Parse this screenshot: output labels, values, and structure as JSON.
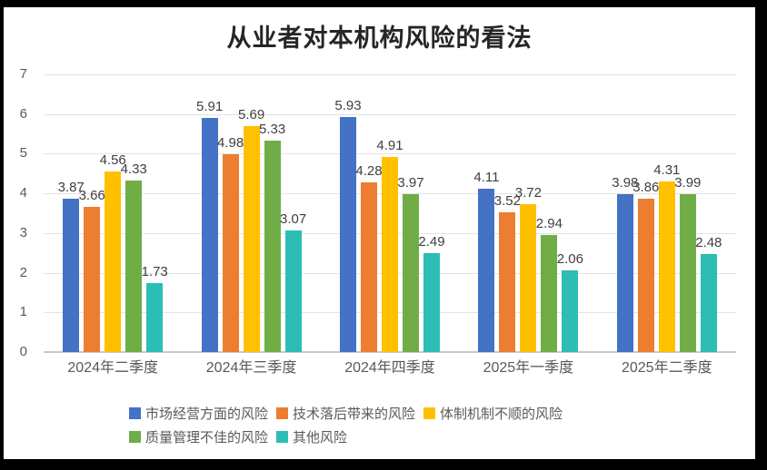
{
  "frame": {
    "background": "#000000",
    "page_background": "#ffffff"
  },
  "chart_data": {
    "type": "bar",
    "title": "从业者对本机构风险的看法",
    "categories": [
      "2024年二季度",
      "2024年三季度",
      "2024年四季度",
      "2025年一季度",
      "2025年二季度"
    ],
    "series": [
      {
        "name": "市场经营方面的风险",
        "color": "#4472C4",
        "values": [
          3.87,
          5.91,
          5.93,
          4.11,
          3.98
        ]
      },
      {
        "name": "技术落后带来的风险",
        "color": "#ED7D31",
        "values": [
          3.66,
          4.98,
          4.28,
          3.52,
          3.86
        ]
      },
      {
        "name": "体制机制不顺的风险",
        "color": "#FFC000",
        "values": [
          4.56,
          5.69,
          4.91,
          3.72,
          4.31
        ]
      },
      {
        "name": "质量管理不佳的风险",
        "color": "#70AD47",
        "values": [
          4.33,
          5.33,
          3.97,
          2.94,
          3.99
        ]
      },
      {
        "name": "其他风险",
        "color": "#2CBDB4",
        "values": [
          1.73,
          3.07,
          2.49,
          2.06,
          2.48
        ]
      }
    ],
    "ylim": [
      0,
      7
    ],
    "yticks": [
      0,
      1,
      2,
      3,
      4,
      5,
      6,
      7
    ],
    "grid": true,
    "data_labels": true,
    "data_label_decimals": 2,
    "legend_position": "bottom",
    "legend_rows": [
      [
        0,
        1,
        2
      ],
      [
        3,
        4
      ]
    ],
    "colors": {
      "gridline": "#e3e3e3",
      "axis_line": "#c9c9c9",
      "tick_text": "#595959",
      "data_label_text": "#3f3f3f",
      "title_text": "#262626"
    }
  }
}
